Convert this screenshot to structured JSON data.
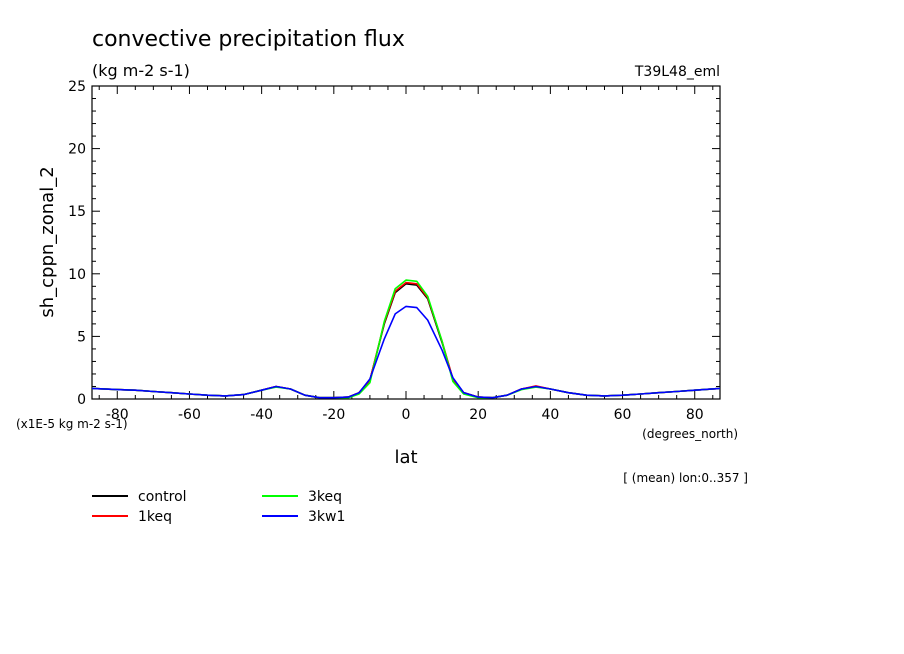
{
  "chart_data": {
    "type": "line",
    "title": "convective precipitation flux",
    "subtitle": "(kg m-2 s-1)",
    "model_label": "T39L48_eml",
    "ylabel": "sh_cppn_zonal_2",
    "xlabel": "lat",
    "x_units": "(degrees_north)",
    "y_scale_note": "(x1E-5 kg m-2 s-1)",
    "footnote": "[ (mean) lon:0..357 ]",
    "xlim": [
      -87,
      87
    ],
    "ylim": [
      0,
      25
    ],
    "x_ticks": [
      -80,
      -60,
      -40,
      -20,
      0,
      20,
      40,
      60,
      80
    ],
    "x_tick_labels": [
      "-80",
      "-60",
      "-40",
      "-20",
      "0",
      "20",
      "40",
      "60",
      "80"
    ],
    "y_ticks": [
      0,
      5,
      10,
      15,
      20,
      25
    ],
    "y_tick_labels": [
      "0",
      "5",
      "10",
      "15",
      "20",
      "25"
    ],
    "grid": false,
    "legend_position": "bottom-left",
    "x": [
      -87,
      -80,
      -75,
      -70,
      -65,
      -60,
      -55,
      -50,
      -45,
      -40,
      -36,
      -32,
      -28,
      -24,
      -20,
      -16,
      -13,
      -10,
      -6,
      -3,
      0,
      3,
      6,
      10,
      13,
      16,
      20,
      24,
      28,
      32,
      36,
      40,
      45,
      50,
      55,
      60,
      65,
      70,
      75,
      80,
      87
    ],
    "series": [
      {
        "name": "control",
        "color": "#000000",
        "values": [
          0.85,
          0.75,
          0.7,
          0.6,
          0.5,
          0.4,
          0.3,
          0.25,
          0.35,
          0.7,
          1.0,
          0.8,
          0.3,
          0.1,
          0.1,
          0.15,
          0.5,
          1.5,
          6.0,
          8.5,
          9.2,
          9.1,
          8.0,
          4.5,
          1.6,
          0.5,
          0.15,
          0.1,
          0.3,
          0.8,
          1.0,
          0.8,
          0.5,
          0.3,
          0.25,
          0.3,
          0.4,
          0.5,
          0.6,
          0.7,
          0.85
        ]
      },
      {
        "name": "1keq",
        "color": "#ff0000",
        "values": [
          0.85,
          0.75,
          0.7,
          0.6,
          0.5,
          0.4,
          0.3,
          0.25,
          0.35,
          0.7,
          1.0,
          0.8,
          0.3,
          0.1,
          0.1,
          0.15,
          0.5,
          1.5,
          6.1,
          8.6,
          9.3,
          9.2,
          8.1,
          4.6,
          1.6,
          0.5,
          0.15,
          0.1,
          0.3,
          0.8,
          1.05,
          0.8,
          0.5,
          0.3,
          0.25,
          0.3,
          0.4,
          0.5,
          0.6,
          0.7,
          0.85
        ]
      },
      {
        "name": "3keq",
        "color": "#00ff00",
        "values": [
          0.85,
          0.75,
          0.7,
          0.6,
          0.5,
          0.4,
          0.3,
          0.25,
          0.35,
          0.7,
          0.95,
          0.8,
          0.3,
          0.1,
          0.1,
          0.1,
          0.4,
          1.3,
          6.2,
          8.8,
          9.5,
          9.4,
          8.2,
          4.6,
          1.4,
          0.4,
          0.1,
          0.1,
          0.3,
          0.75,
          0.95,
          0.8,
          0.5,
          0.3,
          0.25,
          0.3,
          0.4,
          0.5,
          0.6,
          0.7,
          0.85
        ]
      },
      {
        "name": "3kw1",
        "color": "#0000ff",
        "values": [
          0.85,
          0.75,
          0.7,
          0.6,
          0.5,
          0.4,
          0.3,
          0.25,
          0.35,
          0.7,
          1.0,
          0.8,
          0.3,
          0.1,
          0.1,
          0.15,
          0.5,
          1.6,
          4.8,
          6.8,
          7.4,
          7.3,
          6.3,
          3.9,
          1.7,
          0.5,
          0.15,
          0.1,
          0.3,
          0.8,
          1.0,
          0.8,
          0.5,
          0.3,
          0.25,
          0.3,
          0.4,
          0.5,
          0.6,
          0.7,
          0.85
        ]
      }
    ]
  }
}
